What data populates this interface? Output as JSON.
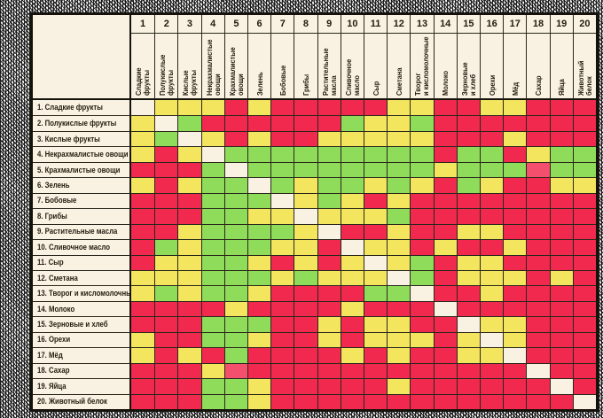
{
  "chart_data": {
    "type": "heatmap",
    "title": "",
    "rows": [
      "1. Сладкие фрукты",
      "2. Полукислые фрукты",
      "3. Кислые фрукты",
      "4. Некрахмалистые овощи",
      "5. Крахмалистые овощи",
      "6. Зелень",
      "7. Бобовые",
      "8. Грибы",
      "9. Растительные масла",
      "10. Сливочное масло",
      "11. Сыр",
      "12. Сметана",
      "13. Творог и кисломолочные",
      "14. Молоко",
      "15. Зерновые и хлеб",
      "16. Орехи",
      "17. Мёд",
      "18. Сахар",
      "19. Яйца",
      "20. Животный белок"
    ],
    "columns": [
      {
        "num": "1",
        "lines": [
          "Сладкие",
          "фрукты"
        ]
      },
      {
        "num": "2",
        "lines": [
          "Полукислые",
          "фрукты"
        ]
      },
      {
        "num": "3",
        "lines": [
          "Кислые",
          "фрукты"
        ]
      },
      {
        "num": "4",
        "lines": [
          "Некрахмалистые",
          "овощи"
        ]
      },
      {
        "num": "5",
        "lines": [
          "Крахмалистые",
          "овощи"
        ]
      },
      {
        "num": "6",
        "lines": [
          "Зелень"
        ]
      },
      {
        "num": "7",
        "lines": [
          "Бобовые"
        ]
      },
      {
        "num": "8",
        "lines": [
          "Грибы"
        ]
      },
      {
        "num": "9",
        "lines": [
          "Растительные",
          "масла"
        ]
      },
      {
        "num": "10",
        "lines": [
          "Сливочное",
          "масло"
        ]
      },
      {
        "num": "11",
        "lines": [
          "Сыр"
        ]
      },
      {
        "num": "12",
        "lines": [
          "Сметана"
        ]
      },
      {
        "num": "13",
        "lines": [
          "Творог",
          "и кисломолочные"
        ]
      },
      {
        "num": "14",
        "lines": [
          "Молоко"
        ]
      },
      {
        "num": "15",
        "lines": [
          "Зерновые",
          "и хлеб"
        ]
      },
      {
        "num": "16",
        "lines": [
          "Орехи"
        ]
      },
      {
        "num": "17",
        "lines": [
          "Мёд"
        ]
      },
      {
        "num": "18",
        "lines": [
          "Сахар"
        ]
      },
      {
        "num": "19",
        "lines": [
          "Яйца"
        ]
      },
      {
        "num": "20",
        "lines": [
          "Животный",
          "белок"
        ]
      }
    ],
    "matrix": [
      "dyyyryrrrrryyrryyrrr",
      "ydgrrrrrrgyygrrrrrrr",
      "ygdyryrryyyyyrrryrrr",
      "yrydgggggggggrggrygg",
      "rrrgdggggggggygggpgg",
      "yryggdgyggygyrgyrryy",
      "rrrgggdygyryrrrrrrrr",
      "rrrggyydyyygrrrrrrrr",
      "rryggggydrryrryyrrrr",
      "rgygggyyrdyyryrryrrr",
      "ryyggyryrydygryyrrrr",
      "yyygggygyyydgryyyryr",
      "ygyggyrrrrggdrryrrrr",
      "rrrryrrrryrrrdrrrrrr",
      "rrrgggrryryyrrdyyrrr",
      "yrrggyrryryyyrydyrrr",
      "yryrgrrrryryrryydrrr",
      "rrryprrrrrrrrrrrrdrr",
      "rrrggyrrrrryrrrrrrdr",
      "rrrggyrrrrrrrrrrrrrd"
    ],
    "palette": {
      "g": "#8edc5a",
      "y": "#f3e55e",
      "r": "#f1294e",
      "p": "#f4506e",
      "d": "#faf3e5"
    },
    "grid_line_color": "#2a271c",
    "outer_border_color": "#14120b",
    "background_color": "#f9f2e2"
  }
}
